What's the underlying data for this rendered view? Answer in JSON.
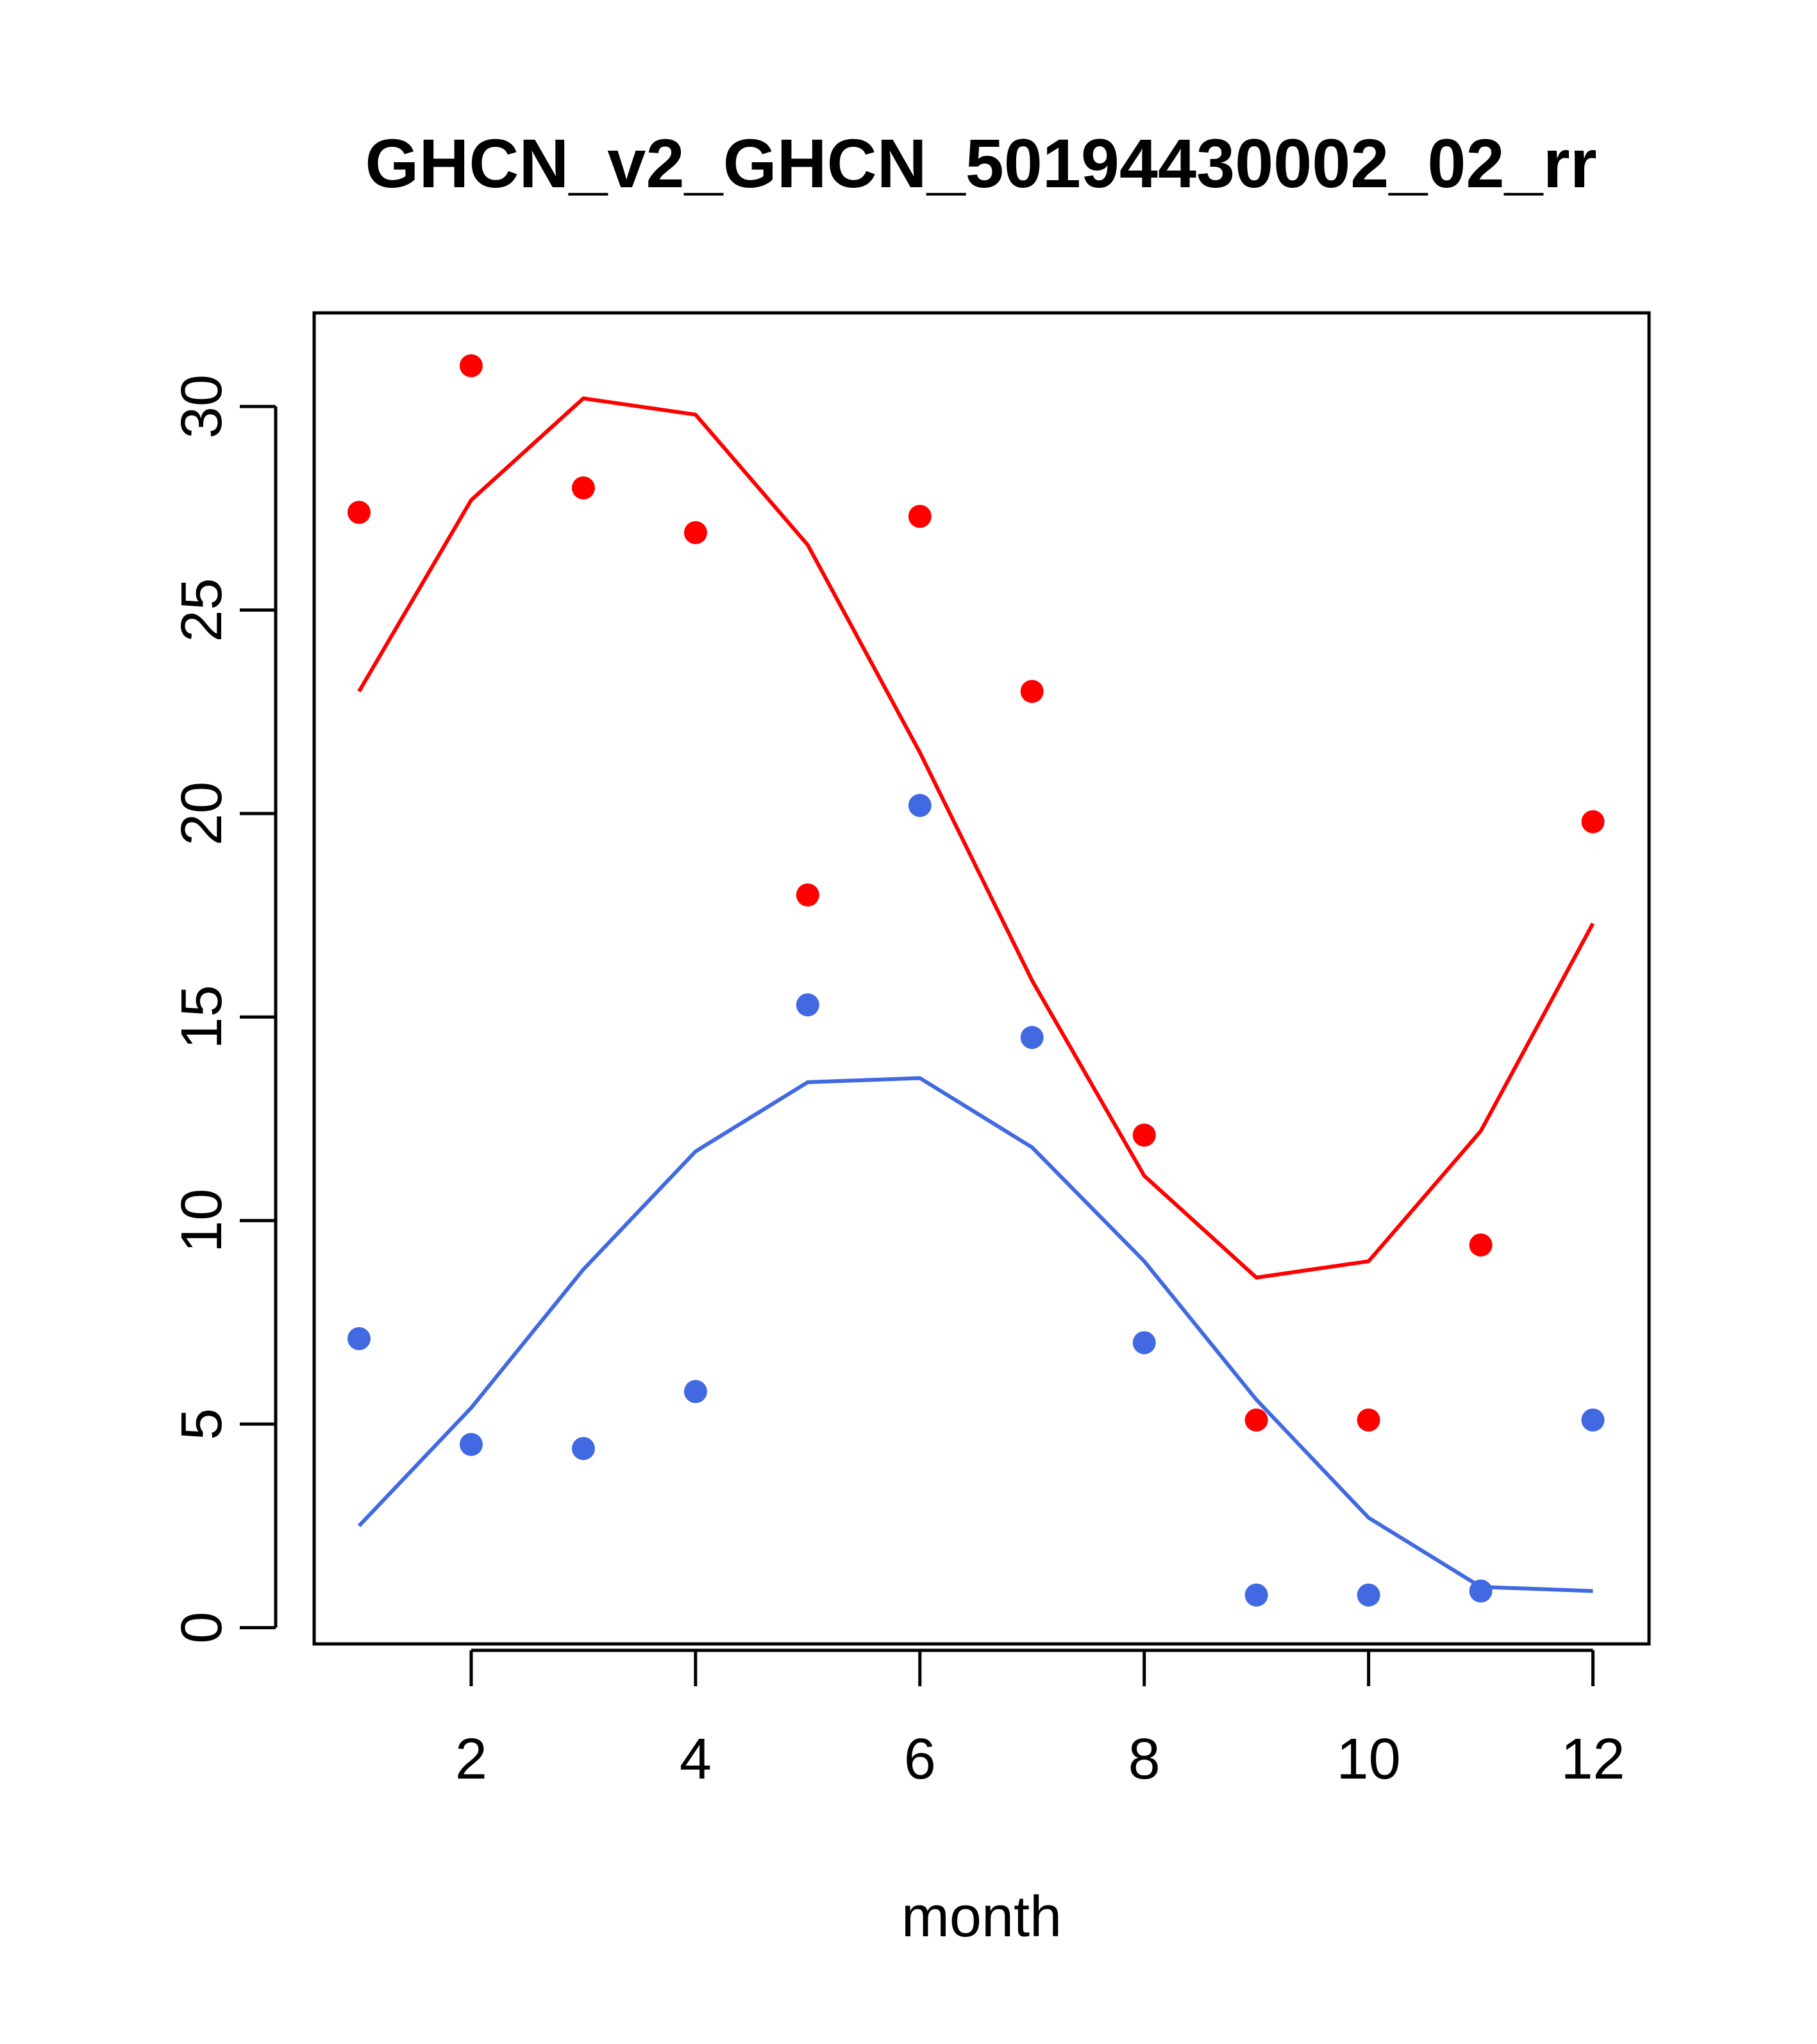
{
  "chart_data": {
    "type": "line",
    "title": "GHCN_v2_GHCN_50194430002_02_rr",
    "xlabel": "month",
    "ylabel": "",
    "xlim": [
      0.6,
      12.5
    ],
    "ylim": [
      -0.4,
      32.3
    ],
    "x_ticks": [
      2,
      4,
      6,
      8,
      10,
      12
    ],
    "y_ticks": [
      0,
      5,
      10,
      15,
      20,
      25,
      30
    ],
    "grid": false,
    "legend": "none",
    "series": [
      {
        "color": "#ff0000",
        "x": [
          1,
          2,
          3,
          4,
          5,
          6,
          7,
          8,
          9,
          10,
          11,
          12
        ],
        "points": [
          27.4,
          31.0,
          28.0,
          26.9,
          18.0,
          27.3,
          23.0,
          12.1,
          5.1,
          5.1,
          9.4,
          19.8
        ],
        "line": [
          23.0,
          27.7,
          30.2,
          29.8,
          26.6,
          21.5,
          15.9,
          11.1,
          8.6,
          9.0,
          12.2,
          17.3
        ]
      },
      {
        "color": "#4169e1",
        "x": [
          1,
          2,
          3,
          4,
          5,
          6,
          7,
          8,
          9,
          10,
          11,
          12
        ],
        "points": [
          7.1,
          4.5,
          4.4,
          5.8,
          15.3,
          20.2,
          14.5,
          7.0,
          0.8,
          0.8,
          0.9,
          5.1
        ],
        "line": [
          2.5,
          5.4,
          8.8,
          11.7,
          13.4,
          13.5,
          11.8,
          9.0,
          5.6,
          2.7,
          1.0,
          0.9
        ]
      }
    ]
  }
}
